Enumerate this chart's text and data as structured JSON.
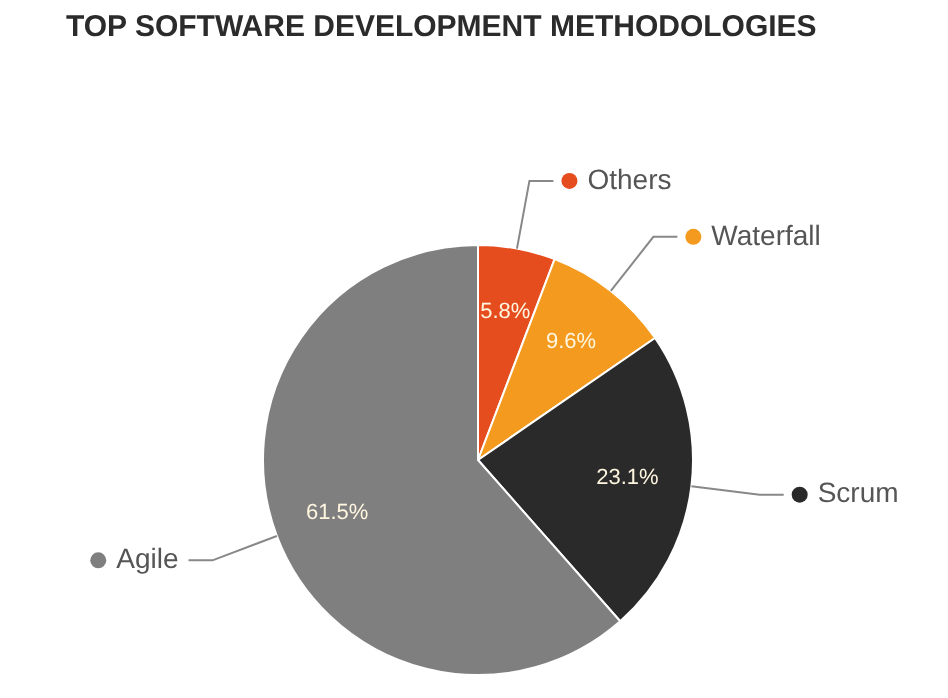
{
  "chart_data": {
    "type": "pie",
    "title": "TOP SOFTWARE DEVELOPMENT METHODOLOGIES",
    "categories": [
      "Others",
      "Waterfall",
      "Scrum",
      "Agile"
    ],
    "values": [
      5.8,
      9.6,
      23.1,
      61.5
    ],
    "colors": [
      "#e64d1e",
      "#f39a1f",
      "#2a2a2a",
      "#7f7f7f"
    ],
    "value_labels": [
      "5.8%",
      "9.6%",
      "23.1%",
      "61.5%"
    ],
    "legend": "right"
  }
}
